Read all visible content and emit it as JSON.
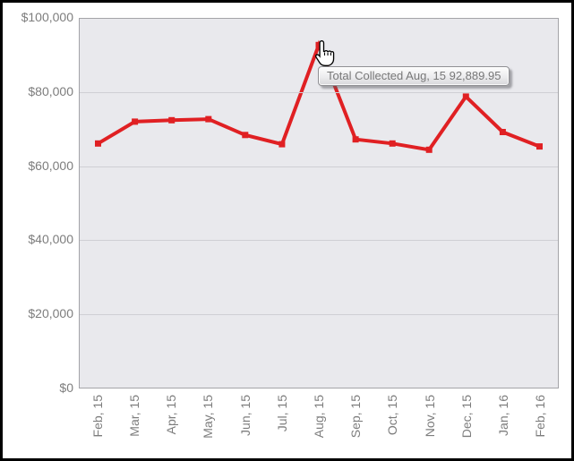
{
  "window": {
    "background_color": "#ffffff",
    "frame_color": "#000000"
  },
  "chart_data": {
    "type": "line",
    "title": "",
    "xlabel": "",
    "ylabel": "",
    "categories": [
      "Feb, 15",
      "Mar, 15",
      "Apr, 15",
      "May, 15",
      "Jun, 15",
      "Jul, 15",
      "Aug, 15",
      "Sep, 15",
      "Oct, 15",
      "Nov, 15",
      "Dec, 15",
      "Jan, 16",
      "Feb, 16"
    ],
    "series": [
      {
        "name": "Total Collected",
        "values": [
          66200,
          72100,
          72500,
          72800,
          68500,
          66000,
          92889.95,
          67300,
          66200,
          64500,
          78900,
          69300,
          65400
        ],
        "color": "#e02023",
        "marker": "square",
        "line_width": 4
      }
    ],
    "ylim": [
      0,
      100000
    ],
    "yticks": [
      {
        "value": 0,
        "label": "$0"
      },
      {
        "value": 20000,
        "label": "$20,000"
      },
      {
        "value": 40000,
        "label": "$40,000"
      },
      {
        "value": 60000,
        "label": "$60,000"
      },
      {
        "value": 80000,
        "label": "$80,000"
      },
      {
        "value": 100000,
        "label": "$100,000"
      }
    ],
    "grid": "horizontal",
    "legend_position": "none",
    "plot_background": "#e9e9ed",
    "grid_color": "#cfcfd4",
    "axis_border_color": "#a4a4a8",
    "tick_label_color": "#7d7d7d"
  },
  "tooltip": {
    "text": "Total Collected Aug, 15 92,889.95",
    "series": "Total Collected",
    "category": "Aug, 15",
    "value": "92,889.95"
  },
  "cursor": {
    "type": "hand-pointer",
    "target_category": "Aug, 15"
  }
}
